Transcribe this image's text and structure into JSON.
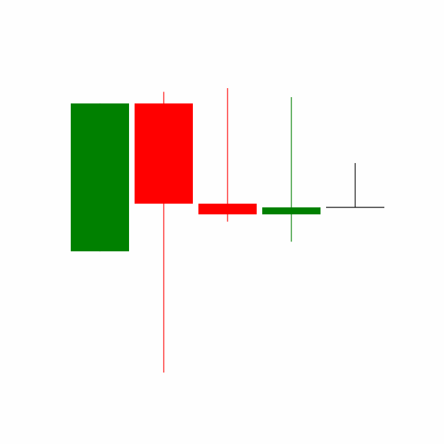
{
  "chart_data": {
    "type": "candlestick",
    "title": "",
    "xlabel": "",
    "ylabel": "",
    "axes_visible": false,
    "grid": false,
    "legend": "none",
    "ylim": [
      0,
      100
    ],
    "colors": {
      "up": "#008000",
      "down": "#ff0000",
      "doji": "#000000",
      "background": "#fefefe"
    },
    "candles": [
      {
        "open": 41.2,
        "high": 85.6,
        "low": 41.2,
        "close": 85.6,
        "direction": "up"
      },
      {
        "open": 85.6,
        "high": 89.1,
        "low": 4.8,
        "close": 55.5,
        "direction": "down"
      },
      {
        "open": 55.5,
        "high": 90.2,
        "low": 50.1,
        "close": 52.3,
        "direction": "down"
      },
      {
        "open": 52.3,
        "high": 87.5,
        "low": 44.1,
        "close": 54.4,
        "direction": "up"
      },
      {
        "open": 54.4,
        "high": 67.7,
        "low": 54.4,
        "close": 54.4,
        "direction": "doji"
      }
    ]
  }
}
